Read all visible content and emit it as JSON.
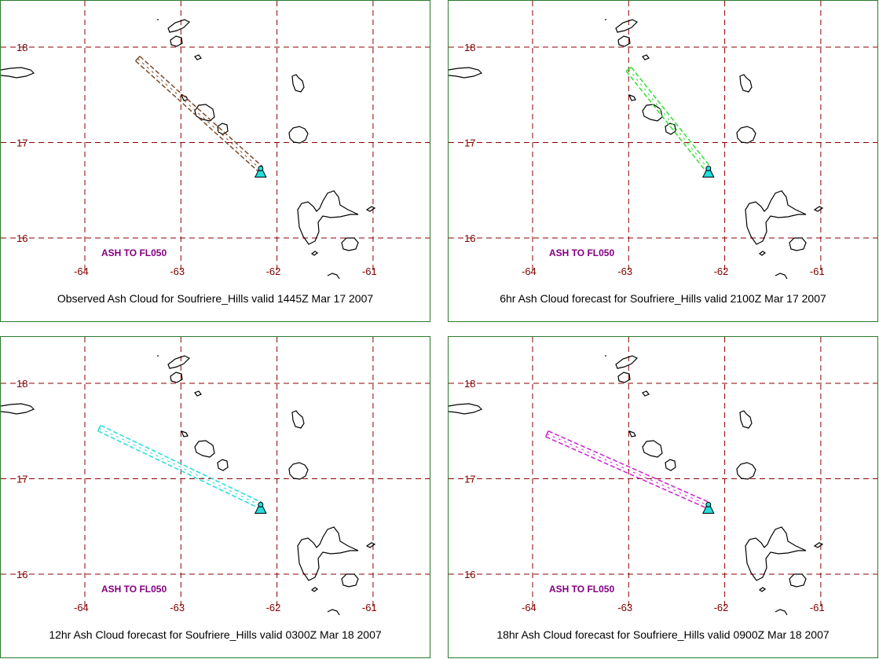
{
  "panels": [
    {
      "caption": "Observed Ash Cloud for Soufriere_Hills valid 1445Z Mar 17 2007",
      "ash_label": "ASH TO FL050",
      "plume_color": "#7b4a2a",
      "plume_start": {
        "lon": -63.45,
        "lat": 17.88
      }
    },
    {
      "caption": "6hr Ash Cloud forecast for Soufriere_Hills valid 2100Z Mar 17 2007",
      "ash_label": "ASH TO FL050",
      "plume_color": "#33dd33",
      "plume_start": {
        "lon": -63.0,
        "lat": 17.77
      }
    },
    {
      "caption": "12hr Ash Cloud forecast for Soufriere_Hills valid 0300Z Mar 18 2007",
      "ash_label": "ASH TO FL050",
      "plume_color": "#22dddd",
      "plume_start": {
        "lon": -63.85,
        "lat": 17.53
      }
    },
    {
      "caption": "18hr Ash Cloud forecast for Soufriere_Hills valid 0900Z Mar 18 2007",
      "ash_label": "ASH TO FL050",
      "plume_color": "#cc22cc",
      "plume_start": {
        "lon": -63.85,
        "lat": 17.47
      }
    }
  ],
  "volcano": {
    "name": "Soufriere_Hills",
    "lon": -62.17,
    "lat": 16.72,
    "marker_color": "#22dddd"
  },
  "map": {
    "lat_ticks": [
      "18",
      "17",
      "16"
    ],
    "lon_ticks": [
      "-64",
      "-63",
      "-62",
      "-61"
    ],
    "grid_color": "#8b0000",
    "label_color": "#800000",
    "ash_label_color": "#800080"
  }
}
